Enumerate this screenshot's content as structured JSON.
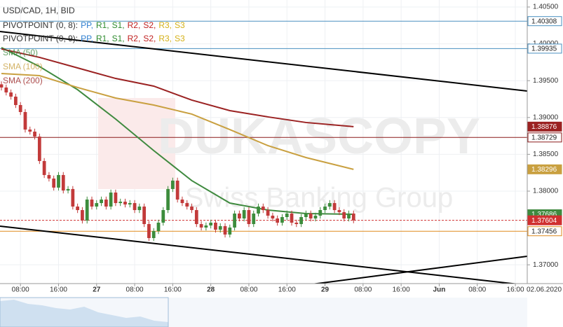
{
  "chart_data": {
    "type": "candlestick",
    "title": "USD/CAD, 1H, BID",
    "date_label": "02.06.2020",
    "watermark": [
      "DUKASCOPY",
      "Swiss Banking Group"
    ],
    "up_color": "#3c8c3c",
    "down_color": "#c23a3a",
    "grid": true,
    "xlim": [
      3.7,
      114.5
    ],
    "ylim": [
      1.36745,
      1.40595
    ],
    "xticks": [
      {
        "value": 8,
        "label": "08:00"
      },
      {
        "value": 16,
        "label": "16:00"
      },
      {
        "value": 24,
        "label": "27"
      },
      {
        "value": 32,
        "label": "08:00"
      },
      {
        "value": 40,
        "label": "16:00"
      },
      {
        "value": 48,
        "label": "28"
      },
      {
        "value": 56,
        "label": "08:00"
      },
      {
        "value": 64,
        "label": "16:00"
      },
      {
        "value": 72,
        "label": "29"
      },
      {
        "value": 80,
        "label": "08:00"
      },
      {
        "value": 88,
        "label": "16:00"
      },
      {
        "value": 96,
        "label": "Jun"
      },
      {
        "value": 104,
        "label": "08:00"
      },
      {
        "value": 112,
        "label": "16:00"
      }
    ],
    "yticks": [
      {
        "value": 1.405,
        "label": "1.40500"
      },
      {
        "value": 1.4,
        "label": "1.40000"
      },
      {
        "value": 1.395,
        "label": "1.39500"
      },
      {
        "value": 1.39,
        "label": "1.39000"
      },
      {
        "value": 1.385,
        "label": "1.38500"
      },
      {
        "value": 1.38,
        "label": "1.38000"
      },
      {
        "value": 1.37,
        "label": "1.37000"
      }
    ],
    "x": [
      4,
      5,
      6,
      7,
      8,
      9,
      10,
      11,
      12,
      13,
      14,
      15,
      16,
      17,
      18,
      19,
      20,
      21,
      22,
      23,
      24,
      25,
      26,
      27,
      28,
      29,
      30,
      31,
      32,
      33,
      34,
      35,
      36,
      37,
      38,
      39,
      40,
      41,
      42,
      43,
      44,
      45,
      46,
      47,
      48,
      49,
      50,
      51,
      52,
      53,
      54,
      55,
      56,
      57,
      58,
      59,
      60,
      61,
      62,
      63,
      64,
      65,
      66,
      67,
      68,
      69,
      70,
      71,
      72,
      73,
      74,
      75,
      76,
      77,
      78
    ],
    "open": [
      1.3945,
      1.39407,
      1.3934,
      1.39283,
      1.39169,
      1.39074,
      1.38836,
      1.38808,
      1.38741,
      1.38409,
      1.38219,
      1.38171,
      1.38048,
      1.38219,
      1.38009,
      1.38029,
      1.37791,
      1.37743,
      1.37601,
      1.37886,
      1.37791,
      1.37838,
      1.37886,
      1.37791,
      1.37981,
      1.37838,
      1.37857,
      1.37819,
      1.37838,
      1.37743,
      1.37791,
      1.37553,
      1.37363,
      1.37458,
      1.37572,
      1.37743,
      1.38029,
      1.38143,
      1.37886,
      1.37838,
      1.37791,
      1.37743,
      1.37553,
      1.37506,
      1.37534,
      1.37572,
      1.37477,
      1.37525,
      1.37411,
      1.37506,
      1.37696,
      1.37629,
      1.37743,
      1.37553,
      1.37696,
      1.37791,
      1.37743,
      1.37667,
      1.37629,
      1.37572,
      1.37648,
      1.37696,
      1.37572,
      1.37553,
      1.37648,
      1.37696,
      1.37629,
      1.37667,
      1.37743,
      1.37791,
      1.37838,
      1.37743,
      1.37715,
      1.37629,
      1.37696
    ],
    "high": [
      1.3949,
      1.39447,
      1.3938,
      1.39323,
      1.39209,
      1.39114,
      1.38876,
      1.38848,
      1.38781,
      1.38449,
      1.38259,
      1.38211,
      1.38259,
      1.38259,
      1.38069,
      1.38069,
      1.37831,
      1.37783,
      1.37926,
      1.37926,
      1.37878,
      1.37926,
      1.37926,
      1.38021,
      1.38021,
      1.37897,
      1.37897,
      1.37878,
      1.37878,
      1.37831,
      1.37831,
      1.37593,
      1.37498,
      1.37612,
      1.37783,
      1.38069,
      1.38183,
      1.38183,
      1.37926,
      1.37878,
      1.37831,
      1.37783,
      1.37593,
      1.37574,
      1.37612,
      1.37612,
      1.37565,
      1.37565,
      1.37546,
      1.37736,
      1.37736,
      1.37783,
      1.37783,
      1.37736,
      1.37831,
      1.37831,
      1.37783,
      1.37707,
      1.37669,
      1.37688,
      1.37736,
      1.37736,
      1.37612,
      1.37688,
      1.37736,
      1.37736,
      1.37707,
      1.37783,
      1.37831,
      1.37878,
      1.37878,
      1.37783,
      1.37755,
      1.37736,
      1.37736
    ],
    "low": [
      1.39367,
      1.393,
      1.39243,
      1.39129,
      1.39034,
      1.38796,
      1.38768,
      1.38701,
      1.38369,
      1.38179,
      1.38131,
      1.38008,
      1.38008,
      1.37969,
      1.37969,
      1.37751,
      1.37703,
      1.37561,
      1.37561,
      1.37751,
      1.37751,
      1.37798,
      1.37751,
      1.37751,
      1.37798,
      1.37798,
      1.37779,
      1.37779,
      1.37703,
      1.37703,
      1.37513,
      1.37323,
      1.37323,
      1.37418,
      1.37532,
      1.37703,
      1.37989,
      1.37846,
      1.37798,
      1.37751,
      1.37703,
      1.37513,
      1.37466,
      1.37466,
      1.37494,
      1.37437,
      1.37437,
      1.37371,
      1.37371,
      1.37466,
      1.37589,
      1.37589,
      1.37513,
      1.37513,
      1.37656,
      1.37703,
      1.37627,
      1.37589,
      1.37532,
      1.37532,
      1.37608,
      1.37532,
      1.37513,
      1.37513,
      1.37608,
      1.37589,
      1.37589,
      1.37627,
      1.37703,
      1.37751,
      1.37703,
      1.37675,
      1.37589,
      1.37589,
      1.37564
    ],
    "close": [
      1.39407,
      1.3934,
      1.39283,
      1.39169,
      1.39074,
      1.38836,
      1.38808,
      1.38741,
      1.38409,
      1.38219,
      1.38171,
      1.38048,
      1.38219,
      1.38009,
      1.38029,
      1.37791,
      1.37743,
      1.37601,
      1.37886,
      1.37791,
      1.37838,
      1.37886,
      1.37791,
      1.37981,
      1.37838,
      1.37857,
      1.37819,
      1.37838,
      1.37743,
      1.37791,
      1.37553,
      1.37363,
      1.37458,
      1.37572,
      1.37743,
      1.38029,
      1.38143,
      1.37886,
      1.37838,
      1.37791,
      1.37743,
      1.37553,
      1.37506,
      1.37534,
      1.37572,
      1.37477,
      1.37525,
      1.37411,
      1.37506,
      1.37696,
      1.37629,
      1.37743,
      1.37553,
      1.37696,
      1.37791,
      1.37743,
      1.37667,
      1.37629,
      1.37572,
      1.37648,
      1.37696,
      1.37572,
      1.37553,
      1.37648,
      1.37696,
      1.37629,
      1.37667,
      1.37743,
      1.37791,
      1.37838,
      1.37743,
      1.37715,
      1.37629,
      1.37696,
      1.37604
    ],
    "pivot_legends": [
      {
        "label": "PIVOTPOINT (0, 8):",
        "items": [
          {
            "name": "PP,",
            "color": "#2f7fd0"
          },
          {
            "name": "R1,",
            "color": "#2e8b2e"
          },
          {
            "name": "S1,",
            "color": "#2e8b2e"
          },
          {
            "name": "R2,",
            "color": "#c02020"
          },
          {
            "name": "S2,",
            "color": "#c02020"
          },
          {
            "name": "R3,",
            "color": "#d4b017"
          },
          {
            "name": "S3",
            "color": "#d4b017"
          }
        ]
      },
      {
        "label": "PIVOTPOINT (0, 9):",
        "items": [
          {
            "name": "PP,",
            "color": "#2f7fd0"
          },
          {
            "name": "R1,",
            "color": "#2e8b2e"
          },
          {
            "name": "S1,",
            "color": "#2e8b2e"
          },
          {
            "name": "R2,",
            "color": "#c02020"
          },
          {
            "name": "S2,",
            "color": "#c02020"
          },
          {
            "name": "R3,",
            "color": "#d4b017"
          },
          {
            "name": "S3",
            "color": "#d4b017"
          }
        ]
      }
    ],
    "overlays": [
      {
        "name": "SMA (50)",
        "color": "#3f8a3f",
        "x": [
          4,
          12,
          20,
          28,
          36,
          44,
          52,
          60,
          68,
          78
        ],
        "values": [
          1.39949,
          1.39692,
          1.39378,
          1.38979,
          1.38551,
          1.38143,
          1.37838,
          1.37743,
          1.37696,
          1.37686
        ]
      },
      {
        "name": "SMA (100)",
        "color": "#c9a040",
        "x": [
          4,
          12,
          20,
          28,
          36,
          44,
          52,
          60,
          68,
          78
        ],
        "values": [
          1.39597,
          1.39568,
          1.39407,
          1.39264,
          1.39169,
          1.39046,
          1.38836,
          1.38618,
          1.38456,
          1.38296
        ]
      },
      {
        "name": "SMA (200)",
        "color": "#9b2222",
        "x": [
          4,
          12,
          20,
          28,
          36,
          44,
          52,
          60,
          68,
          78
        ],
        "values": [
          1.3993,
          1.39816,
          1.39673,
          1.3953,
          1.39426,
          1.39236,
          1.39093,
          1.39008,
          1.38932,
          1.38876
        ]
      }
    ],
    "levels": [
      {
        "value": 1.40308,
        "color": "#4a90c0",
        "style": "solid"
      },
      {
        "value": 1.39935,
        "color": "#4a90c0",
        "style": "solid"
      },
      {
        "value": 1.38729,
        "color": "#8b1a1a",
        "style": "solid"
      },
      {
        "value": 1.37456,
        "color": "#e08a1e",
        "style": "solid"
      },
      {
        "value": 1.37604,
        "color": "#d03030",
        "style": "dashed",
        "current": true
      }
    ],
    "trendlines": [
      {
        "x": [
          3.7,
          114.5
        ],
        "values": [
          1.40167,
          1.39359
        ]
      },
      {
        "x": [
          3.7,
          114.5
        ],
        "values": [
          1.37525,
          1.36722
        ]
      },
      {
        "x": [
          67,
          114.5
        ],
        "values": [
          1.36717,
          1.37116
        ]
      }
    ]
  }
}
